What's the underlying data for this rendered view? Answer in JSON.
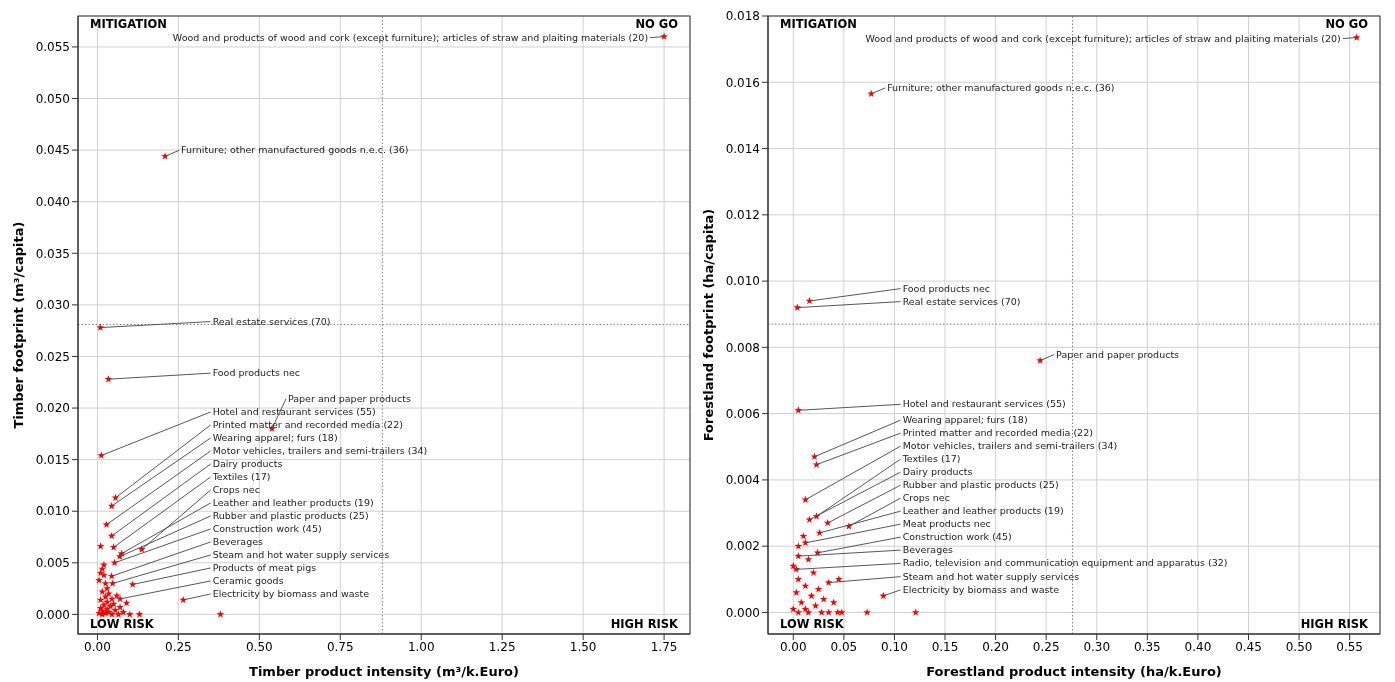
{
  "chart_data": [
    {
      "type": "scatter",
      "xlabel": "Timber product intensity (m³/k.Euro)",
      "ylabel": "Timber footprint (m³/capita)",
      "marker": "star",
      "grid": true,
      "xlim": [
        -0.06,
        1.83
      ],
      "ylim": [
        -0.0019,
        0.058
      ],
      "xticks": [
        {
          "value": 0,
          "label": "0.00"
        },
        {
          "value": 0.25,
          "label": "0.25"
        },
        {
          "value": 0.5,
          "label": "0.50"
        },
        {
          "value": 0.75,
          "label": "0.75"
        },
        {
          "value": 1,
          "label": "1.00"
        },
        {
          "value": 1.25,
          "label": "1.25"
        },
        {
          "value": 1.5,
          "label": "1.50"
        },
        {
          "value": 1.75,
          "label": "1.75"
        }
      ],
      "yticks": [
        {
          "value": 0,
          "label": "0.000"
        },
        {
          "value": 0.005,
          "label": "0.005"
        },
        {
          "value": 0.01,
          "label": "0.010"
        },
        {
          "value": 0.015,
          "label": "0.015"
        },
        {
          "value": 0.02,
          "label": "0.020"
        },
        {
          "value": 0.025,
          "label": "0.025"
        },
        {
          "value": 0.03,
          "label": "0.030"
        },
        {
          "value": 0.035,
          "label": "0.035"
        },
        {
          "value": 0.04,
          "label": "0.040"
        },
        {
          "value": 0.045,
          "label": "0.045"
        },
        {
          "value": 0.05,
          "label": "0.050"
        },
        {
          "value": 0.055,
          "label": "0.055"
        }
      ],
      "ref_lines": [
        {
          "axis": "x",
          "value": 0.88,
          "color": "#808080",
          "line_style": "dotted"
        },
        {
          "axis": "y",
          "value": 0.0281,
          "color": "#808080",
          "line_style": "dotted"
        }
      ],
      "series": [
        {
          "color": "#ff0000",
          "x": [
            1.75,
            0.209,
            0.009,
            0.034,
            0.539,
            0.012,
            0.056,
            0.044,
            0.028,
            0.044,
            0.05,
            0.137,
            0.075,
            0.069,
            0.053,
            0.044,
            0.109,
            0.047,
            0.07,
            0.265,
            0.38,
            0.01,
            0.02,
            0.015,
            0.01,
            0.02,
            0.005,
            0.025,
            0.03,
            0.015,
            0.035,
            0.06,
            0.025,
            0.045,
            0.01,
            0.03,
            0.05,
            0.02,
            0.04,
            0.07,
            0.01,
            0.03,
            0.055,
            0.015,
            0.035,
            0.08,
            0.005,
            0.025,
            0.045,
            0.065,
            0.1,
            0.13,
            0.015,
            0.09
          ],
          "values": [
            0.056,
            0.0444,
            0.0278,
            0.0228,
            0.018,
            0.0154,
            0.0113,
            0.0105,
            0.0087,
            0.0076,
            0.0065,
            0.0063,
            0.0059,
            0.0056,
            0.005,
            0.0037,
            0.0029,
            0.003,
            0.0015,
            0.0014,
            0,
            0.0066,
            0.0048,
            0.0044,
            0.004,
            0.0038,
            0.0033,
            0.003,
            0.0025,
            0.0022,
            0.002,
            0.0018,
            0.0017,
            0.0015,
            0.0014,
            0.0012,
            0.001,
            0.0009,
            0.0008,
            0.0007,
            0.0006,
            0.0005,
            0.0004,
            0.0003,
            0.0002,
            0.0002,
            0.0001,
            0.0001,
            0,
            0,
            0,
            0,
            0,
            0.0011
          ]
        }
      ],
      "annotations": [
        "MITIGATION",
        "NO GO",
        "LOW RISK",
        "HIGH RISK",
        {
          "text": "Wood and products of wood and cork (except furniture); articles of straw and plaiting materials (20)",
          "x": 1.75,
          "y": 0.056
        },
        {
          "text": "Furniture; other manufactured goods n.e.c. (36)",
          "x": 0.209,
          "y": 0.0444
        },
        {
          "text": "Real estate services (70)",
          "x": 0.009,
          "y": 0.0278
        },
        {
          "text": "Food products nec",
          "x": 0.034,
          "y": 0.0228
        },
        {
          "text": "Paper and paper products",
          "x": 0.539,
          "y": 0.018
        },
        {
          "text": "Hotel and restaurant services (55)",
          "x": 0.012,
          "y": 0.0154
        },
        {
          "text": "Printed matter and recorded media (22)",
          "x": 0.056,
          "y": 0.0113
        },
        {
          "text": "Wearing apparel; furs (18)",
          "x": 0.044,
          "y": 0.0105
        },
        {
          "text": "Motor vehicles, trailers and semi-trailers (34)",
          "x": 0.028,
          "y": 0.0087
        },
        {
          "text": "Dairy products",
          "x": 0.044,
          "y": 0.0076
        },
        {
          "text": "Textiles (17)",
          "x": 0.05,
          "y": 0.0065
        },
        {
          "text": "Crops nec",
          "x": 0.137,
          "y": 0.0063
        },
        {
          "text": "Leather and leather products (19)",
          "x": 0.075,
          "y": 0.0059
        },
        {
          "text": "Rubber and plastic products (25)",
          "x": 0.069,
          "y": 0.0056
        },
        {
          "text": "Construction work (45)",
          "x": 0.053,
          "y": 0.005
        },
        {
          "text": "Beverages",
          "x": 0.044,
          "y": 0.0037
        },
        {
          "text": "Products of meat pigs",
          "x": 0.109,
          "y": 0.0029
        },
        {
          "text": "Steam and hot water supply services",
          "x": 0.047,
          "y": 0.003
        },
        {
          "text": "Ceramic goods",
          "x": 0.07,
          "y": 0.0015
        },
        {
          "text": "Electricity by biomass and waste",
          "x": 0.265,
          "y": 0.0014
        }
      ]
    },
    {
      "type": "scatter",
      "xlabel": "Forestland product intensity (ha/k.Euro)",
      "ylabel": "Forestland footprint (ha/capita)",
      "marker": "star",
      "grid": true,
      "xlim": [
        -0.025,
        0.58
      ],
      "ylim": [
        -0.00065,
        0.018
      ],
      "xticks": [
        {
          "value": 0,
          "label": "0.00"
        },
        {
          "value": 0.05,
          "label": "0.05"
        },
        {
          "value": 0.1,
          "label": "0.10"
        },
        {
          "value": 0.15,
          "label": "0.15"
        },
        {
          "value": 0.2,
          "label": "0.20"
        },
        {
          "value": 0.25,
          "label": "0.25"
        },
        {
          "value": 0.3,
          "label": "0.30"
        },
        {
          "value": 0.35,
          "label": "0.35"
        },
        {
          "value": 0.4,
          "label": "0.40"
        },
        {
          "value": 0.45,
          "label": "0.45"
        },
        {
          "value": 0.5,
          "label": "0.50"
        },
        {
          "value": 0.55,
          "label": "0.55"
        }
      ],
      "yticks": [
        {
          "value": 0,
          "label": "0.000"
        },
        {
          "value": 0.002,
          "label": "0.002"
        },
        {
          "value": 0.004,
          "label": "0.004"
        },
        {
          "value": 0.006,
          "label": "0.006"
        },
        {
          "value": 0.008,
          "label": "0.008"
        },
        {
          "value": 0.01,
          "label": "0.010"
        },
        {
          "value": 0.012,
          "label": "0.012"
        },
        {
          "value": 0.014,
          "label": "0.014"
        },
        {
          "value": 0.016,
          "label": "0.016"
        },
        {
          "value": 0.018,
          "label": "0.018"
        }
      ],
      "ref_lines": [
        {
          "axis": "x",
          "value": 0.276,
          "color": "#808080",
          "line_style": "dotted"
        },
        {
          "axis": "y",
          "value": 0.0087,
          "color": "#808080",
          "line_style": "dotted"
        }
      ],
      "series": [
        {
          "color": "#ff0000",
          "x": [
            0.557,
            0.077,
            0.016,
            0.004,
            0.244,
            0.005,
            0.021,
            0.023,
            0.012,
            0.023,
            0.016,
            0.034,
            0.055,
            0.026,
            0.012,
            0.024,
            0.005,
            0.003,
            0.035,
            0.089,
            0.044,
            0.048,
            0.073,
            0.121,
            0.01,
            0.005,
            0.015,
            0,
            0.02,
            0.005,
            0.012,
            0.025,
            0.003,
            0.018,
            0.03,
            0.008,
            0.022,
            0.04,
            0,
            0.012,
            0.028,
            0.005,
            0.035,
            0.015,
            0.045
          ],
          "values": [
            0.01735,
            0.01565,
            0.0094,
            0.0092,
            0.0076,
            0.0061,
            0.0047,
            0.00446,
            0.0034,
            0.0029,
            0.0028,
            0.0027,
            0.0026,
            0.0024,
            0.0021,
            0.0018,
            0.0017,
            0.0013,
            0.0009,
            0.0005,
            0,
            0,
            0,
            0,
            0.0023,
            0.002,
            0.0016,
            0.0014,
            0.0012,
            0.001,
            0.0008,
            0.0007,
            0.0006,
            0.0005,
            0.0004,
            0.0003,
            0.0002,
            0.0003,
            0.0001,
            0.0001,
            0,
            0,
            0,
            0,
            0.001
          ]
        }
      ],
      "annotations": [
        "MITIGATION",
        "NO GO",
        "LOW RISK",
        "HIGH RISK",
        {
          "text": "Wood and products of wood and cork (except furniture); articles of straw and plaiting materials (20)",
          "x": 0.557,
          "y": 0.01735
        },
        {
          "text": "Furniture; other manufactured goods n.e.c. (36)",
          "x": 0.077,
          "y": 0.01565
        },
        {
          "text": "Food products nec",
          "x": 0.016,
          "y": 0.0094
        },
        {
          "text": "Real estate services (70)",
          "x": 0.004,
          "y": 0.0092
        },
        {
          "text": "Paper and paper products",
          "x": 0.244,
          "y": 0.0076
        },
        {
          "text": "Hotel and restaurant services (55)",
          "x": 0.005,
          "y": 0.0061
        },
        {
          "text": "Wearing apparel; furs (18)",
          "x": 0.021,
          "y": 0.0047
        },
        {
          "text": "Printed matter and recorded media (22)",
          "x": 0.023,
          "y": 0.00446
        },
        {
          "text": "Motor vehicles, trailers and semi-trailers (34)",
          "x": 0.012,
          "y": 0.0034
        },
        {
          "text": "Textiles (17)",
          "x": 0.023,
          "y": 0.0029
        },
        {
          "text": "Dairy products",
          "x": 0.016,
          "y": 0.0028
        },
        {
          "text": "Rubber and plastic products (25)",
          "x": 0.034,
          "y": 0.0027
        },
        {
          "text": "Crops nec",
          "x": 0.055,
          "y": 0.0026
        },
        {
          "text": "Leather and leather products (19)",
          "x": 0.026,
          "y": 0.0024
        },
        {
          "text": "Meat products nec",
          "x": 0.012,
          "y": 0.0021
        },
        {
          "text": "Construction work (45)",
          "x": 0.024,
          "y": 0.0018
        },
        {
          "text": "Beverages",
          "x": 0.005,
          "y": 0.0017
        },
        {
          "text": "Radio, television and communication equipment and apparatus (32)",
          "x": 0.003,
          "y": 0.0013
        },
        {
          "text": "Steam and hot water supply services",
          "x": 0.035,
          "y": 0.0009
        },
        {
          "text": "Electricity by biomass and waste",
          "x": 0.089,
          "y": 0.0005
        }
      ]
    }
  ]
}
